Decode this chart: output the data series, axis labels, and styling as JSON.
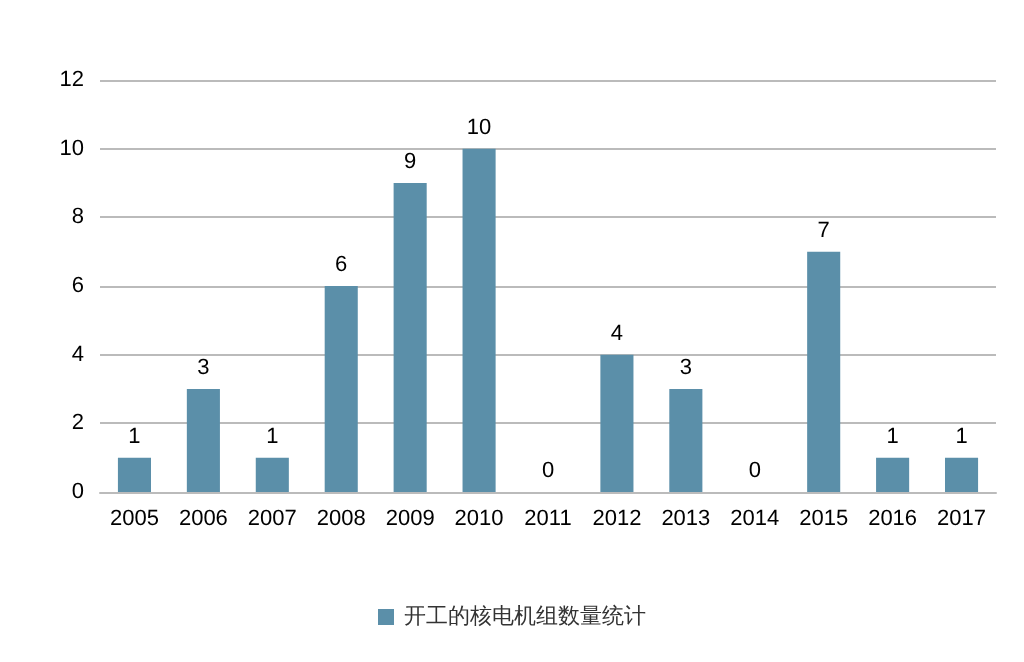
{
  "chart_data": {
    "type": "bar",
    "categories": [
      "2005",
      "2006",
      "2007",
      "2008",
      "2009",
      "2010",
      "2011",
      "2012",
      "2013",
      "2014",
      "2015",
      "2016",
      "2017"
    ],
    "series": [
      {
        "name": "开工的核电机组数量统计",
        "color": "#5b8fa9",
        "values": [
          1,
          3,
          1,
          6,
          9,
          10,
          0,
          4,
          3,
          0,
          7,
          1,
          1
        ]
      }
    ],
    "ylim": [
      0,
      12
    ],
    "yticks": [
      0,
      2,
      4,
      6,
      8,
      10,
      12
    ],
    "grid": "y",
    "legend": "bottom",
    "data_labels": true
  }
}
